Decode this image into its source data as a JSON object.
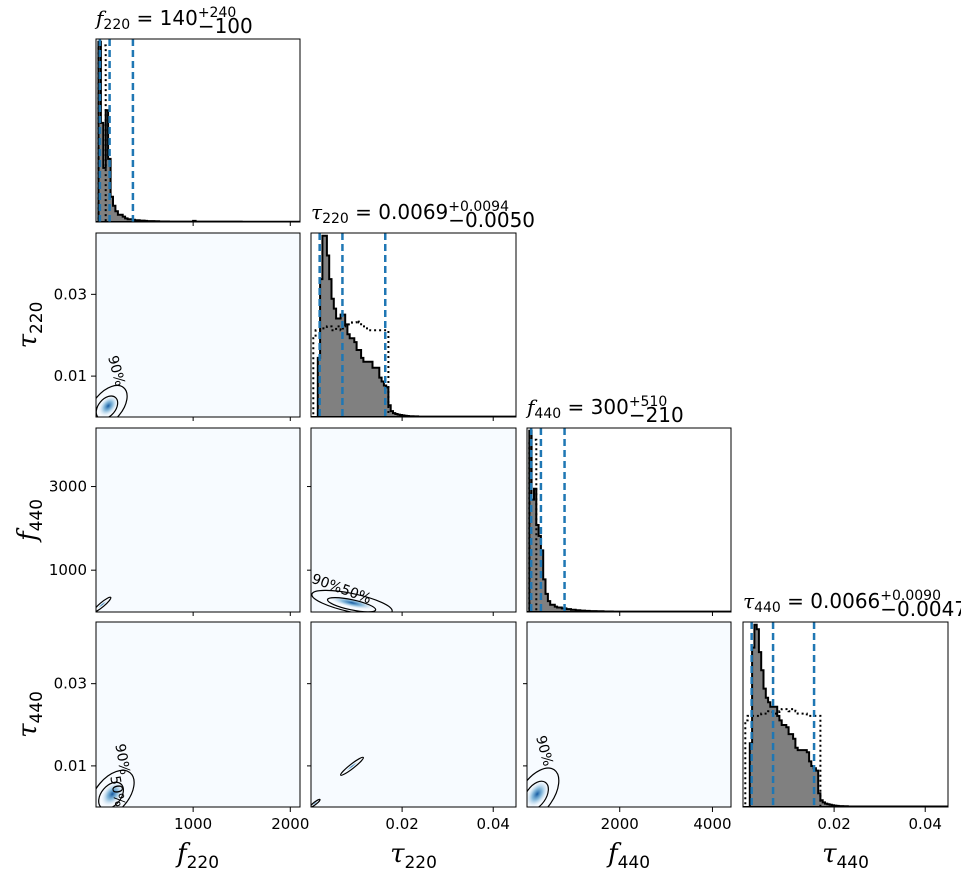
{
  "chart_data": {
    "type": "corner",
    "parameters": [
      {
        "key": "f220",
        "symbol": "f",
        "subscript": "220",
        "range": [
          0,
          2100
        ],
        "ticks": [
          1000,
          2000
        ],
        "tick_labels": [
          "1000",
          "2000"
        ]
      },
      {
        "key": "tau220",
        "symbol": "τ",
        "subscript": "220",
        "range": [
          0,
          0.045
        ],
        "ticks": [
          0.02,
          0.04
        ],
        "tick_labels": [
          "0.02",
          "0.04"
        ],
        "y_ticks": [
          0.01,
          0.03
        ],
        "y_tick_labels": [
          "0.01",
          "0.03"
        ]
      },
      {
        "key": "f440",
        "symbol": "f",
        "subscript": "440",
        "range": [
          0,
          4400
        ],
        "ticks": [
          2000,
          4000
        ],
        "tick_labels": [
          "2000",
          "4000"
        ],
        "y_ticks": [
          1000,
          3000
        ],
        "y_tick_labels": [
          "1000",
          "3000"
        ]
      },
      {
        "key": "tau440",
        "symbol": "τ",
        "subscript": "440",
        "range": [
          0,
          0.045
        ],
        "ticks": [
          0.02,
          0.04
        ],
        "tick_labels": [
          "0.02",
          "0.04"
        ],
        "y_ticks": [
          0.01,
          0.03
        ],
        "y_tick_labels": [
          "0.01",
          "0.03"
        ]
      }
    ],
    "titles": [
      {
        "name": "f",
        "sub": "220",
        "median": "140",
        "plus": "+240",
        "minus": "−100"
      },
      {
        "name": "τ",
        "sub": "220",
        "median": "0.0069",
        "plus": "+0.0094",
        "minus": "−0.0050"
      },
      {
        "name": "f",
        "sub": "440",
        "median": "300",
        "plus": "+510",
        "minus": "−210"
      },
      {
        "name": "τ",
        "sub": "440",
        "median": "0.0066",
        "plus": "+0.0090",
        "minus": "−0.0047"
      }
    ],
    "quantile_lines": [
      [
        40,
        140,
        380
      ],
      [
        0.0019,
        0.0069,
        0.0163
      ],
      [
        90,
        300,
        810
      ],
      [
        0.0019,
        0.0066,
        0.0156
      ]
    ],
    "histograms": [
      {
        "bin_start": 0,
        "bin_width": 25,
        "counts": [
          0,
          100,
          55,
          30,
          62,
          35,
          14,
          9,
          6,
          4,
          4,
          3,
          2,
          1.5,
          1.5,
          1.2,
          1,
          1,
          0.8,
          0.8,
          0.6,
          0.5,
          0.5,
          0.5,
          0.4,
          0.4,
          0.3,
          0.3,
          0.3,
          0.3,
          0.2,
          0.2,
          0.2,
          0.2,
          0.2,
          0.2,
          0.2,
          0.2,
          0.2,
          0.2,
          0.6,
          0.2,
          0.2,
          0.2,
          0.2,
          0.2,
          0.2,
          0.2,
          0.2,
          0.2,
          0.2,
          0.2,
          0.2,
          0.2,
          0.2,
          0.2,
          0.2,
          0.2,
          0.2,
          0.2,
          0.1,
          0.1,
          0.1,
          0.1,
          0.1,
          0.1,
          0.1,
          0.1,
          0.1,
          0.1,
          0.1,
          0.1,
          0.1,
          0.1,
          0.1,
          0.1,
          0.1,
          0.1,
          0.1,
          0.1,
          0.1,
          0.1,
          0.1,
          0.1
        ],
        "prior_counts": [
          0,
          98,
          98,
          98,
          0
        ]
      },
      {
        "bin_start": 0,
        "bin_width": 0.0005,
        "counts": [
          0,
          0,
          0,
          30,
          70,
          92,
          92,
          82,
          70,
          60,
          55,
          50,
          50,
          52,
          52,
          47,
          42,
          40,
          40,
          38,
          34,
          34,
          30,
          28,
          28,
          28,
          28,
          25,
          25,
          25,
          20,
          18,
          16,
          15,
          6,
          3,
          2,
          1.5,
          1.2,
          1,
          0.8,
          0.6,
          0.5,
          0.4,
          0.4,
          0.3,
          0.3,
          0.2,
          0.2,
          0.2,
          0.2,
          0.2,
          0.2,
          0.2,
          0.2,
          0.2,
          0.2,
          0.2,
          0.2,
          0.2,
          0.2,
          0.2,
          0.2,
          0.2,
          0.2,
          0.2,
          0.2,
          0.2,
          0.2,
          0.2,
          0.2,
          0.2,
          0.2,
          0.2,
          0.2,
          0.2,
          0.2,
          0.2,
          0.2,
          0.2,
          0.2,
          0.2,
          0.2,
          0.2,
          0.2,
          0.2,
          0.2,
          0.2,
          0.2,
          0.2
        ],
        "prior_counts": [
          0,
          40,
          44,
          44,
          45,
          45,
          45,
          46,
          46,
          44,
          44,
          46,
          46,
          44,
          46,
          47,
          47,
          47,
          48,
          48,
          49,
          48,
          46,
          46,
          45,
          45,
          44,
          44,
          44,
          44,
          44,
          44,
          44,
          44,
          0
        ]
      },
      {
        "bin_start": 0,
        "bin_width": 50,
        "counts": [
          0,
          100,
          62,
          68,
          48,
          42,
          34,
          18,
          10,
          6,
          4,
          4,
          3,
          2.5,
          2.5,
          2,
          2,
          1.6,
          1.6,
          1.2,
          1.2,
          1,
          1,
          0.8,
          0.8,
          0.6,
          0.6,
          0.5,
          0.5,
          0.5,
          0.4,
          0.4,
          0.4,
          0.3,
          0.3,
          0.3,
          0.3,
          0.2,
          0.2,
          0.2,
          0.2,
          0.2,
          0.2,
          0.2,
          0.2,
          0.2,
          0.2,
          0.2,
          0.2,
          0.2,
          0.2,
          0.2,
          0.2,
          0.2,
          0.2,
          0.2,
          0.2,
          0.2,
          0.2,
          0.2,
          0.2,
          0.2,
          0.2,
          0.2,
          0.2,
          0.2,
          0.2,
          0.2,
          0.2,
          0.2,
          0.2,
          0.2,
          0.2,
          0.2,
          0.2,
          0.2,
          0.2,
          0.2,
          0.2,
          0.2,
          0.2,
          0.2,
          0.2,
          0.2,
          0.2,
          0.2,
          0.2,
          0.2
        ],
        "prior_counts": [
          0,
          95,
          95,
          95,
          0
        ]
      },
      {
        "bin_start": 0,
        "bin_width": 0.0005,
        "counts": [
          0,
          0,
          0,
          28,
          70,
          80,
          78,
          68,
          60,
          52,
          48,
          46,
          44,
          44,
          44,
          40,
          38,
          36,
          36,
          35,
          32,
          32,
          30,
          26,
          25,
          25,
          25,
          25,
          24,
          20,
          18,
          17,
          16,
          6,
          3,
          2,
          1.5,
          1.2,
          1,
          0.8,
          0.6,
          0.5,
          0.4,
          0.4,
          0.3,
          0.3,
          0.2,
          0.2,
          0.2,
          0.2,
          0.2,
          0.2,
          0.2,
          0.2,
          0.2,
          0.2,
          0.2,
          0.2,
          0.2,
          0.2,
          0.2,
          0.2,
          0.2,
          0.2,
          0.2,
          0.2,
          0.2,
          0.2,
          0.2,
          0.2,
          0.2,
          0.2,
          0.2,
          0.2,
          0.2,
          0.2,
          0.2,
          0.2,
          0.2,
          0.2,
          0.2,
          0.2,
          0.2,
          0.2,
          0.2,
          0.2,
          0.2,
          0.2,
          0.2,
          0.2
        ],
        "prior_counts": [
          0,
          38,
          40,
          40,
          40,
          40,
          40,
          40,
          41,
          41,
          41,
          42,
          42,
          41,
          41,
          41,
          42,
          43,
          43,
          43,
          42,
          43,
          43,
          42,
          41,
          41,
          41,
          41,
          40,
          40,
          40,
          40,
          40,
          40,
          0
        ]
      }
    ],
    "contour_levels": [
      "90%",
      "50%"
    ],
    "annotations": [
      "90%",
      "90%",
      "90%50%",
      "90%",
      "50%"
    ],
    "colormap": "Blues",
    "colors": {
      "hist_fill": "#808080",
      "hist_edge": "#000000",
      "quantile": "#1f77b4",
      "density_bg": "#f7fbff",
      "density_mid": "#6baed6",
      "density_peak": "#08519c",
      "contour": "#000000"
    }
  }
}
